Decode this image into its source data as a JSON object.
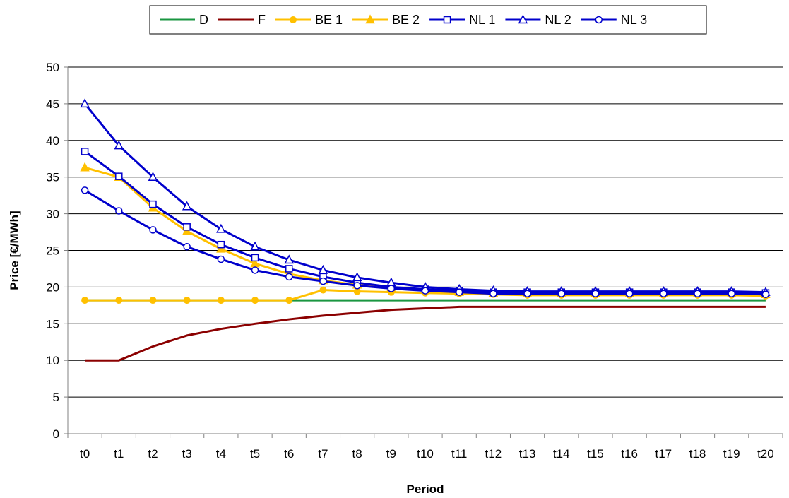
{
  "chart_data": {
    "type": "line",
    "xlabel": "Period",
    "ylabel": "Price [€/MWh]",
    "ylim": [
      0,
      50
    ],
    "yticks": [
      0,
      5,
      10,
      15,
      20,
      25,
      30,
      35,
      40,
      45,
      50
    ],
    "grid": "horizontal",
    "legend_position": "top",
    "categories": [
      "t0",
      "t1",
      "t2",
      "t3",
      "t4",
      "t5",
      "t6",
      "t7",
      "t8",
      "t9",
      "t10",
      "t11",
      "t12",
      "t13",
      "t14",
      "t15",
      "t16",
      "t17",
      "t18",
      "t19",
      "t20"
    ],
    "series": [
      {
        "name": "D",
        "color": "#1a9641",
        "marker": "none",
        "values": [
          18.2,
          18.2,
          18.2,
          18.2,
          18.2,
          18.2,
          18.2,
          18.2,
          18.2,
          18.2,
          18.2,
          18.2,
          18.2,
          18.2,
          18.2,
          18.2,
          18.2,
          18.2,
          18.2,
          18.2,
          18.2
        ]
      },
      {
        "name": "F",
        "color": "#8b0000",
        "marker": "none",
        "values": [
          10.0,
          10.0,
          11.9,
          13.4,
          14.3,
          15.0,
          15.6,
          16.1,
          16.5,
          16.9,
          17.1,
          17.3,
          17.3,
          17.3,
          17.3,
          17.3,
          17.3,
          17.3,
          17.3,
          17.3,
          17.3
        ]
      },
      {
        "name": "BE 1",
        "color": "#ffc000",
        "marker": "circle-filled",
        "values": [
          18.2,
          18.2,
          18.2,
          18.2,
          18.2,
          18.2,
          18.2,
          19.6,
          19.4,
          19.3,
          19.2,
          19.1,
          19.0,
          18.9,
          18.9,
          18.9,
          18.9,
          18.9,
          18.9,
          18.9,
          18.8
        ]
      },
      {
        "name": "BE 2",
        "color": "#ffc000",
        "marker": "triangle-filled",
        "values": [
          36.3,
          35.0,
          30.8,
          27.6,
          25.2,
          23.2,
          21.8,
          20.9,
          20.3,
          19.9,
          19.6,
          19.3,
          19.2,
          19.1,
          19.1,
          19.1,
          19.1,
          19.1,
          19.1,
          19.1,
          19.0
        ]
      },
      {
        "name": "NL 1",
        "color": "#0000cc",
        "marker": "square-open",
        "values": [
          38.5,
          35.1,
          31.3,
          28.2,
          25.8,
          24.0,
          22.5,
          21.4,
          20.6,
          20.0,
          19.7,
          19.5,
          19.3,
          19.3,
          19.3,
          19.3,
          19.3,
          19.3,
          19.3,
          19.3,
          19.2
        ]
      },
      {
        "name": "NL 2",
        "color": "#0000cc",
        "marker": "triangle-open",
        "values": [
          45.0,
          39.3,
          35.0,
          31.0,
          27.9,
          25.5,
          23.7,
          22.3,
          21.3,
          20.6,
          20.0,
          19.7,
          19.5,
          19.4,
          19.4,
          19.4,
          19.4,
          19.4,
          19.4,
          19.4,
          19.3
        ]
      },
      {
        "name": "NL 3",
        "color": "#0000cc",
        "marker": "circle-open",
        "values": [
          33.2,
          30.4,
          27.8,
          25.5,
          23.8,
          22.3,
          21.4,
          20.8,
          20.2,
          19.8,
          19.5,
          19.3,
          19.1,
          19.1,
          19.1,
          19.1,
          19.1,
          19.1,
          19.1,
          19.1,
          19.0
        ]
      }
    ]
  }
}
